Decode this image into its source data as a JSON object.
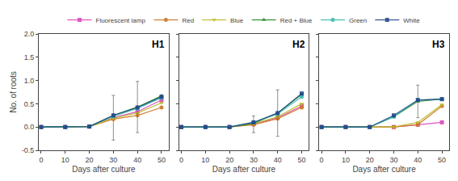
{
  "chart_data": [
    {
      "type": "line",
      "title": "H1",
      "xlabel": "Days after culture",
      "ylabel": "No. of roots",
      "x": [
        0,
        10,
        20,
        30,
        40,
        50
      ],
      "xlim": [
        -1,
        53
      ],
      "xticks": [
        0,
        10,
        20,
        30,
        40,
        50
      ],
      "ylim": [
        -0.5,
        2.0
      ],
      "yticks": [
        -0.5,
        {
          "value": 0.0,
          "label": "0.0"
        },
        {
          "value": 0.5,
          "label": "0.5"
        },
        {
          "value": 1.0,
          "label": "1.0"
        },
        {
          "value": 1.5,
          "label": "1.5"
        },
        {
          "value": 2.0,
          "label": "2.0"
        }
      ],
      "grid": false,
      "legend": "top",
      "series": [
        {
          "name": "Fluorescent lamp",
          "color": "#dd44bb",
          "marker": "square",
          "values": [
            0.0,
            0.0,
            0.01,
            0.2,
            0.33,
            0.58
          ],
          "errors": [
            0.0,
            0.0,
            0.0,
            0.48,
            0.0,
            0.0
          ]
        },
        {
          "name": "Red",
          "color": "#cc7722",
          "marker": "circle",
          "values": [
            0.0,
            0.0,
            0.01,
            0.17,
            0.25,
            0.42
          ],
          "errors": [
            0.0,
            0.0,
            0.0,
            0.0,
            0.0,
            0.0
          ]
        },
        {
          "name": "Blue",
          "color": "#bbbb22",
          "marker": "triangle-down",
          "values": [
            0.0,
            0.0,
            0.01,
            0.19,
            0.3,
            0.52
          ],
          "errors": [
            0.0,
            0.0,
            0.0,
            0.0,
            0.0,
            0.0
          ]
        },
        {
          "name": "Red + Blue",
          "color": "#228822",
          "marker": "triangle-up",
          "values": [
            0.0,
            0.0,
            0.01,
            0.25,
            0.43,
            0.67
          ],
          "errors": [
            0.0,
            0.0,
            0.0,
            0.0,
            0.55,
            0.0
          ]
        },
        {
          "name": "Green",
          "color": "#33bbaa",
          "marker": "circle",
          "values": [
            0.0,
            0.0,
            0.01,
            0.23,
            0.4,
            0.63
          ],
          "errors": [
            0.0,
            0.0,
            0.0,
            0.0,
            0.0,
            0.0
          ]
        },
        {
          "name": "White",
          "color": "#224488",
          "marker": "square",
          "values": [
            0.0,
            0.0,
            0.01,
            0.25,
            0.42,
            0.65
          ],
          "errors": [
            0.0,
            0.0,
            0.0,
            0.0,
            0.0,
            0.0
          ]
        }
      ]
    },
    {
      "type": "line",
      "title": "H2",
      "xlabel": "Days after culture",
      "x": [
        0,
        10,
        20,
        30,
        40,
        50
      ],
      "xlim": [
        -1,
        53
      ],
      "xticks": [
        0,
        10,
        20,
        30,
        40,
        50
      ],
      "ylim": [
        -0.5,
        2.0
      ],
      "yticks": [
        -0.5,
        {
          "value": 0.0,
          "label": "0.0"
        },
        {
          "value": 0.5,
          "label": "0.5"
        },
        {
          "value": 1.0,
          "label": "1.0"
        },
        {
          "value": 1.5,
          "label": "1.5"
        },
        {
          "value": 2.0,
          "label": "2.0"
        }
      ],
      "grid": false,
      "tick_labels": "x",
      "series": [
        {
          "name": "Fluorescent lamp",
          "color": "#dd44bb",
          "marker": "square",
          "values": [
            0.0,
            0.0,
            0.0,
            0.06,
            0.2,
            0.45
          ],
          "errors": [
            0.0,
            0.0,
            0.0,
            0.18,
            0.0,
            0.0
          ]
        },
        {
          "name": "Red",
          "color": "#cc7722",
          "marker": "circle",
          "values": [
            0.0,
            0.0,
            0.0,
            0.05,
            0.18,
            0.42
          ],
          "errors": [
            0.0,
            0.0,
            0.0,
            0.0,
            0.0,
            0.0
          ]
        },
        {
          "name": "Blue",
          "color": "#bbbb22",
          "marker": "triangle-down",
          "values": [
            0.0,
            0.0,
            0.0,
            0.07,
            0.22,
            0.5
          ],
          "errors": [
            0.0,
            0.0,
            0.0,
            0.0,
            0.0,
            0.0
          ]
        },
        {
          "name": "Red + Blue",
          "color": "#228822",
          "marker": "triangle-up",
          "values": [
            0.0,
            0.0,
            0.0,
            0.08,
            0.3,
            0.7
          ],
          "errors": [
            0.0,
            0.0,
            0.0,
            0.0,
            0.5,
            0.0
          ]
        },
        {
          "name": "Green",
          "color": "#33bbaa",
          "marker": "circle",
          "values": [
            0.0,
            0.0,
            0.0,
            0.1,
            0.28,
            0.65
          ],
          "errors": [
            0.0,
            0.0,
            0.0,
            0.0,
            0.0,
            0.0
          ]
        },
        {
          "name": "White",
          "color": "#224488",
          "marker": "square",
          "values": [
            0.0,
            0.0,
            0.0,
            0.1,
            0.3,
            0.72
          ],
          "errors": [
            0.0,
            0.0,
            0.0,
            0.0,
            0.0,
            0.0
          ]
        }
      ]
    },
    {
      "type": "line",
      "title": "H3",
      "xlabel": "Days after culture",
      "x": [
        0,
        10,
        20,
        30,
        40,
        50
      ],
      "xlim": [
        -1,
        53
      ],
      "xticks": [
        0,
        10,
        20,
        30,
        40,
        50
      ],
      "ylim": [
        -0.5,
        2.0
      ],
      "yticks": [
        -0.5,
        {
          "value": 0.0,
          "label": "0.0"
        },
        {
          "value": 0.5,
          "label": "0.5"
        },
        {
          "value": 1.0,
          "label": "1.0"
        },
        {
          "value": 1.5,
          "label": "1.5"
        },
        {
          "value": 2.0,
          "label": "2.0"
        }
      ],
      "grid": false,
      "tick_labels": "x",
      "series": [
        {
          "name": "Fluorescent lamp",
          "color": "#dd44bb",
          "marker": "square",
          "values": [
            0.0,
            0.0,
            0.0,
            0.0,
            0.05,
            0.1
          ],
          "errors": [
            0.0,
            0.0,
            0.0,
            0.0,
            0.0,
            0.0
          ]
        },
        {
          "name": "Red",
          "color": "#cc7722",
          "marker": "circle",
          "values": [
            0.0,
            0.0,
            0.0,
            0.0,
            0.05,
            0.45
          ],
          "errors": [
            0.0,
            0.0,
            0.0,
            0.0,
            0.0,
            0.0
          ]
        },
        {
          "name": "Blue",
          "color": "#bbbb22",
          "marker": "triangle-down",
          "values": [
            0.0,
            0.0,
            0.0,
            0.0,
            0.1,
            0.48
          ],
          "errors": [
            0.0,
            0.0,
            0.0,
            0.0,
            0.0,
            0.0
          ]
        },
        {
          "name": "Red + Blue",
          "color": "#228822",
          "marker": "triangle-up",
          "values": [
            0.0,
            0.0,
            0.0,
            0.22,
            0.55,
            0.6
          ],
          "errors": [
            0.0,
            0.0,
            0.0,
            0.0,
            0.35,
            0.0
          ]
        },
        {
          "name": "Green",
          "color": "#33bbaa",
          "marker": "circle",
          "values": [
            0.0,
            0.0,
            0.0,
            0.22,
            0.58,
            0.6
          ],
          "errors": [
            0.0,
            0.0,
            0.0,
            0.0,
            0.0,
            0.0
          ]
        },
        {
          "name": "White",
          "color": "#224488",
          "marker": "square",
          "values": [
            0.0,
            0.0,
            0.0,
            0.25,
            0.58,
            0.6
          ],
          "errors": [
            0.0,
            0.0,
            0.0,
            0.0,
            0.0,
            0.0
          ]
        }
      ]
    }
  ]
}
